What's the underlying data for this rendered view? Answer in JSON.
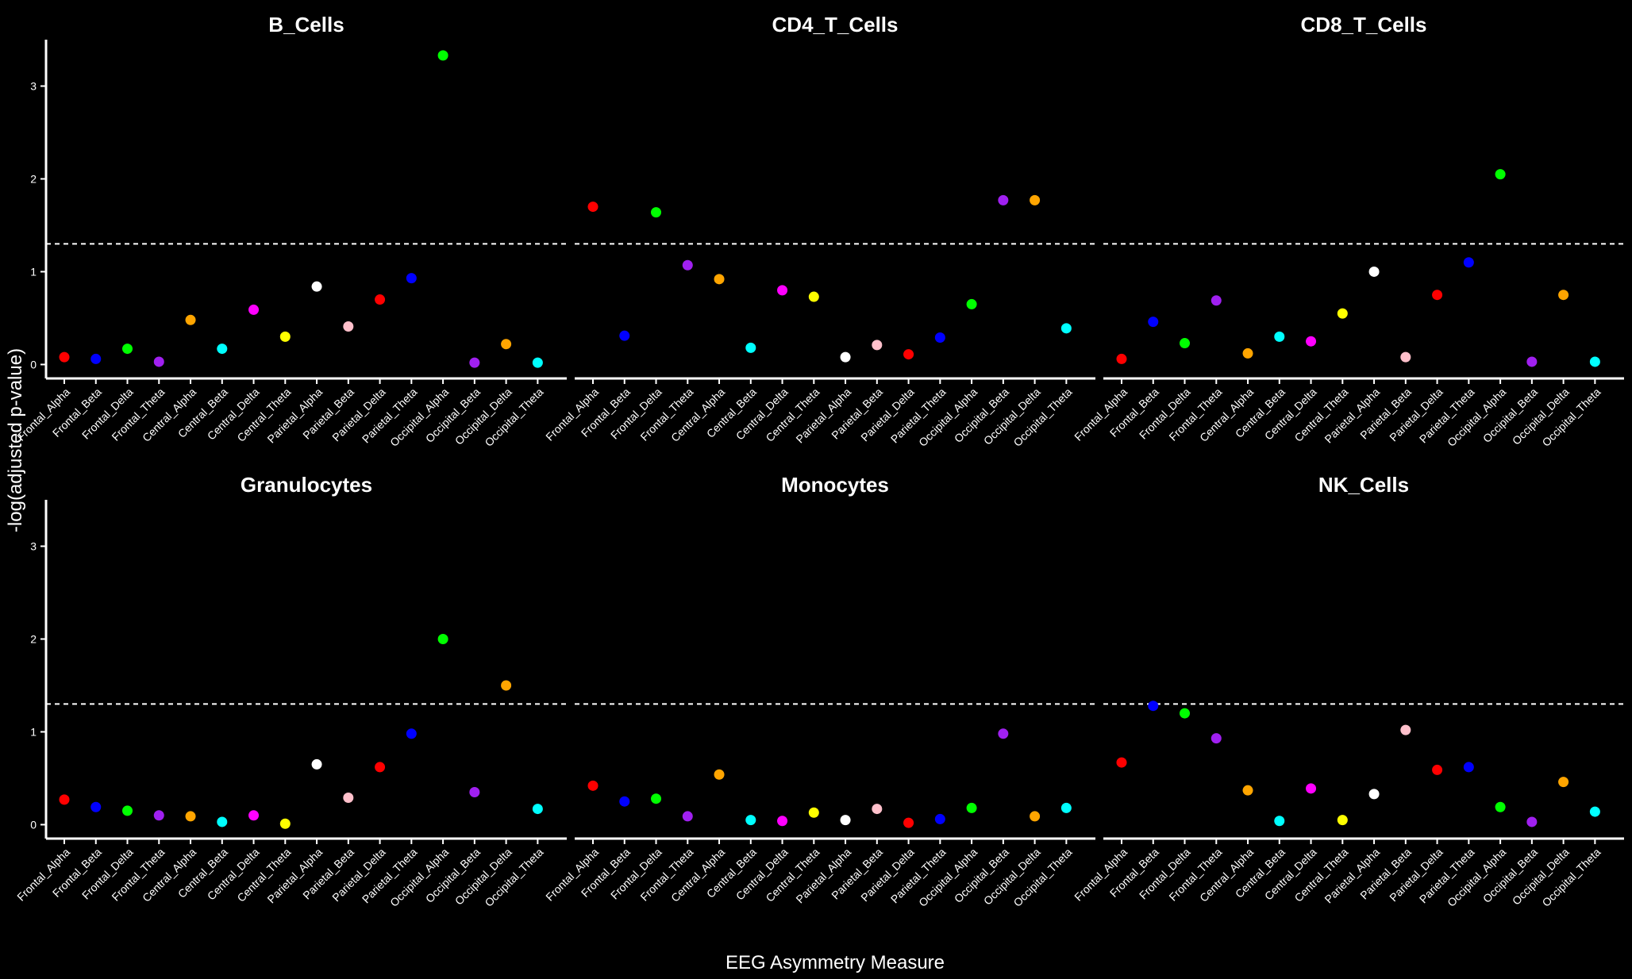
{
  "chart_data": {
    "type": "scatter",
    "xlabel": "EEG Asymmetry Measure",
    "ylabel": "-log(adjusted p-value)",
    "ylim": [
      -0.15,
      3.5
    ],
    "yticks": [
      0,
      1,
      2,
      3
    ],
    "threshold": 1.3,
    "layout": "2 rows x 3 columns facets",
    "categories": [
      "Frontal_Alpha",
      "Frontal_Beta",
      "Frontal_Delta",
      "Frontal_Theta",
      "Central_Alpha",
      "Central_Beta",
      "Central_Delta",
      "Central_Theta",
      "Parietal_Alpha",
      "Parietal_Beta",
      "Parietal_Delta",
      "Parietal_Theta",
      "Occipital_Alpha",
      "Occipital_Beta",
      "Occipital_Delta",
      "Occipital_Theta"
    ],
    "colors": [
      "#ff0000",
      "#0000ff",
      "#00ff00",
      "#a020f0",
      "#ffa500",
      "#00ffff",
      "#ff00ff",
      "#ffff00",
      "#ffffff",
      "#ffc0cb",
      "#ff0000",
      "#0000ff",
      "#00ff00",
      "#a020f0",
      "#ffa500",
      "#00ffff"
    ],
    "panels": [
      {
        "title": "B_Cells",
        "values": [
          0.08,
          0.06,
          0.17,
          0.03,
          0.48,
          0.17,
          0.59,
          0.3,
          0.84,
          0.41,
          0.7,
          0.93,
          3.33,
          0.02,
          0.22,
          0.02
        ]
      },
      {
        "title": "CD4_T_Cells",
        "values": [
          1.7,
          0.31,
          1.64,
          1.07,
          0.92,
          0.18,
          0.8,
          0.73,
          0.08,
          0.21,
          0.11,
          0.29,
          0.65,
          1.77,
          1.77,
          0.39
        ]
      },
      {
        "title": "CD8_T_Cells",
        "values": [
          0.06,
          0.46,
          0.23,
          0.69,
          0.12,
          0.3,
          0.25,
          0.55,
          1.0,
          0.08,
          0.75,
          1.1,
          2.05,
          0.03,
          0.75,
          0.03
        ]
      },
      {
        "title": "Granulocytes",
        "values": [
          0.27,
          0.19,
          0.15,
          0.1,
          0.09,
          0.03,
          0.1,
          0.01,
          0.65,
          0.29,
          0.62,
          0.98,
          2.0,
          0.35,
          1.5,
          0.17
        ]
      },
      {
        "title": "Monocytes",
        "values": [
          0.42,
          0.25,
          0.28,
          0.09,
          0.54,
          0.05,
          0.04,
          0.13,
          0.05,
          0.17,
          0.02,
          0.06,
          0.18,
          0.98,
          0.09,
          0.18
        ]
      },
      {
        "title": "NK_Cells",
        "values": [
          0.67,
          1.28,
          1.2,
          0.93,
          0.37,
          0.04,
          0.39,
          0.05,
          0.33,
          1.02,
          0.59,
          0.62,
          0.19,
          0.03,
          0.46,
          0.14
        ]
      }
    ]
  }
}
